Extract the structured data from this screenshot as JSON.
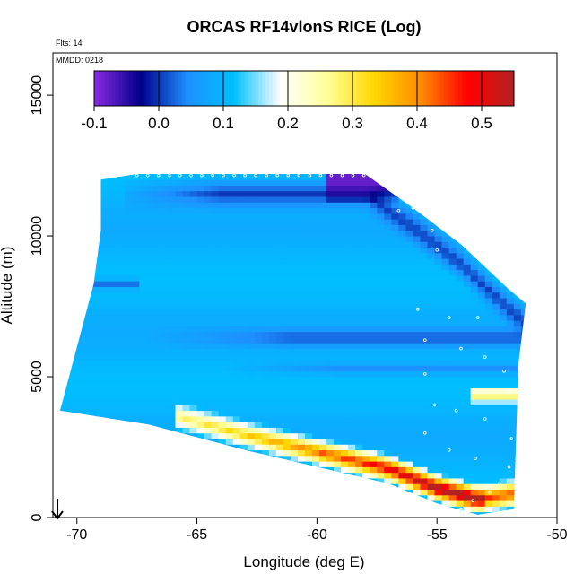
{
  "chart_data": {
    "type": "heatmap",
    "title": "ORCAS RF14vlonS RICE (Log)",
    "xlabel": "Longitude (deg E)",
    "ylabel": "Altitude (m)",
    "xlim": [
      -71,
      -50
    ],
    "ylim": [
      0,
      16500
    ],
    "x_ticks": [
      -70,
      -65,
      -60,
      -55,
      -50
    ],
    "x_tick_labels": [
      "-70",
      "-65",
      "-60",
      "-55",
      "-50"
    ],
    "y_ticks": [
      0,
      5000,
      10000,
      15000
    ],
    "y_tick_labels": [
      "0",
      "5000",
      "10000",
      "15000"
    ],
    "annotations": {
      "flights": "Flts: 14",
      "date": "MMDD: 0218"
    },
    "colorbar": {
      "min": -0.1,
      "max": 0.55,
      "ticks": [
        -0.1,
        0.0,
        0.1,
        0.2,
        0.3,
        0.4,
        0.5
      ],
      "tick_labels": [
        "-0.1",
        "0.0",
        "0.1",
        "0.2",
        "0.3",
        "0.4",
        "0.5"
      ],
      "colors": [
        "#8a2be2",
        "#00008b",
        "#1e90ff",
        "#00bfff",
        "#ffffff",
        "#ffff99",
        "#ffd700",
        "#ff8c00",
        "#ff0000",
        "#b22222"
      ]
    },
    "domain_bounds": {
      "top": [
        [
          -69,
          12000
        ],
        [
          -67.5,
          12200
        ],
        [
          -58,
          12200
        ],
        [
          -57.5,
          11900
        ],
        [
          -56,
          11000
        ],
        [
          -54,
          9700
        ],
        [
          -52,
          8100
        ],
        [
          -51.3,
          7600
        ]
      ],
      "bottom": [
        [
          -70.7,
          3800
        ],
        [
          -67,
          3300
        ],
        [
          -63,
          2400
        ],
        [
          -60,
          1800
        ],
        [
          -57,
          1200
        ],
        [
          -55,
          500
        ],
        [
          -53.3,
          100
        ],
        [
          -51.8,
          300
        ]
      ],
      "left": [
        [
          -70.7,
          3800
        ],
        [
          -69.3,
          8300
        ],
        [
          -69,
          10200
        ],
        [
          -69,
          12000
        ]
      ],
      "right": [
        [
          -51.3,
          7600
        ],
        [
          -51.6,
          5500
        ],
        [
          -51.8,
          300
        ]
      ]
    },
    "background_value": 0.1,
    "features": [
      {
        "name": "upper-dark-band",
        "value": 0.0,
        "x_range": [
          -66,
          -51.8
        ],
        "alt_top": [
          11800,
          10400,
          9200,
          8400
        ],
        "thickness_m": 700
      },
      {
        "name": "top-purple-patch",
        "value": -0.08,
        "x_range": [
          -59.5,
          -56.5
        ],
        "alt_range": [
          11300,
          12200
        ]
      },
      {
        "name": "mid-dark-band",
        "value": 0.01,
        "x_range": [
          -67,
          -52
        ],
        "alt_range": [
          6100,
          6700
        ]
      },
      {
        "name": "mid-lower-dark-band",
        "value": 0.03,
        "x_range": [
          -64,
          -52
        ],
        "alt_range": [
          5100,
          5500
        ]
      },
      {
        "name": "left-dark-strip",
        "value": 0.03,
        "x_range": [
          -69.3,
          -67.5
        ],
        "alt_range": [
          8100,
          8500
        ]
      },
      {
        "name": "surface-warm-band",
        "value": 0.45,
        "x_range": [
          -66,
          -52.5
        ],
        "note": "follows bottom edge, max near -54 lon at 1000 m"
      },
      {
        "name": "right-warm-patch",
        "value": 0.3,
        "x_range": [
          -53.5,
          -52
        ],
        "alt_range": [
          4000,
          4600
        ]
      }
    ]
  }
}
